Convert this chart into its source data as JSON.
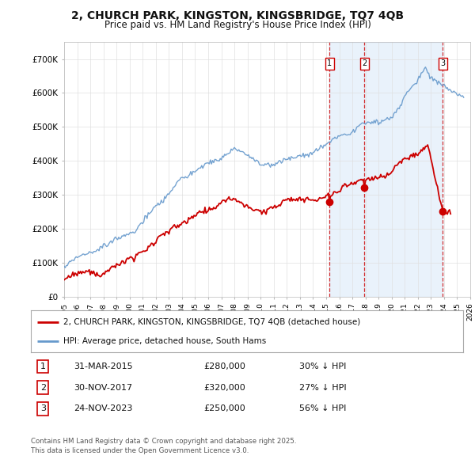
{
  "title": "2, CHURCH PARK, KINGSTON, KINGSBRIDGE, TQ7 4QB",
  "subtitle": "Price paid vs. HM Land Registry's House Price Index (HPI)",
  "title_fontsize": 10,
  "subtitle_fontsize": 8.5,
  "bg_color": "#ffffff",
  "plot_bg_color": "#ffffff",
  "grid_color": "#e0e0e0",
  "hpi_color": "#6699cc",
  "hpi_fill_color": "#d0e4f7",
  "price_color": "#cc0000",
  "transaction_line_color": "#cc0000",
  "ylim": [
    0,
    750000
  ],
  "yticks": [
    0,
    100000,
    200000,
    300000,
    400000,
    500000,
    600000,
    700000
  ],
  "ytick_labels": [
    "£0",
    "£100K",
    "£200K",
    "£300K",
    "£400K",
    "£500K",
    "£600K",
    "£700K"
  ],
  "transactions": [
    {
      "date": 2015.25,
      "price": 280000,
      "label": "1"
    },
    {
      "date": 2017.92,
      "price": 320000,
      "label": "2"
    },
    {
      "date": 2023.9,
      "price": 250000,
      "label": "3"
    }
  ],
  "transaction_table": [
    {
      "num": "1",
      "date": "31-MAR-2015",
      "price": "£280,000",
      "hpi_diff": "30% ↓ HPI"
    },
    {
      "num": "2",
      "date": "30-NOV-2017",
      "price": "£320,000",
      "hpi_diff": "27% ↓ HPI"
    },
    {
      "num": "3",
      "date": "24-NOV-2023",
      "price": "£250,000",
      "hpi_diff": "56% ↓ HPI"
    }
  ],
  "legend_items": [
    {
      "label": "2, CHURCH PARK, KINGSTON, KINGSBRIDGE, TQ7 4QB (detached house)",
      "color": "#cc0000"
    },
    {
      "label": "HPI: Average price, detached house, South Hams",
      "color": "#6699cc"
    }
  ],
  "footer": "Contains HM Land Registry data © Crown copyright and database right 2025.\nThis data is licensed under the Open Government Licence v3.0.",
  "xmin": 1995,
  "xmax": 2026
}
